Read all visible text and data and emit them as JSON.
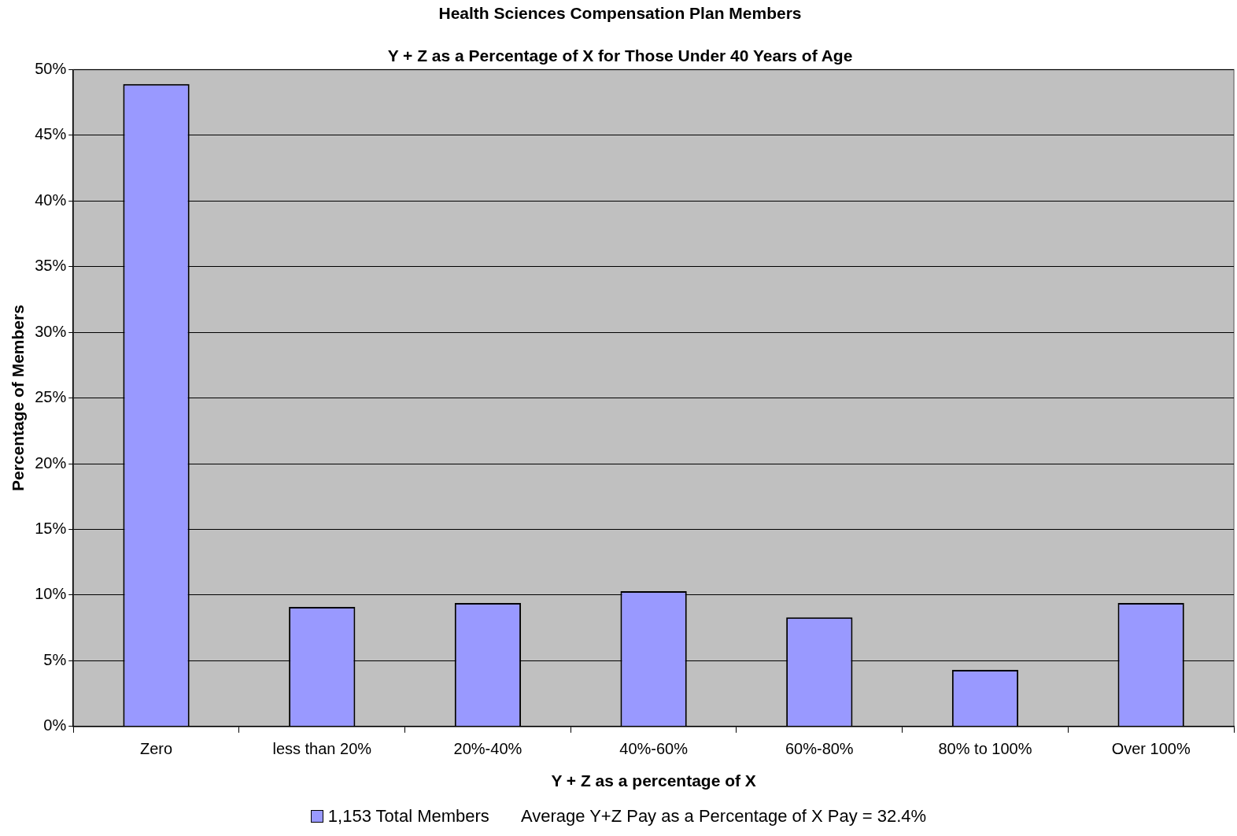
{
  "chart_data": {
    "type": "bar",
    "title": "Health Sciences Compensation Plan Members",
    "subtitle": "Y + Z as a Percentage of X for Those Under 40 Years of Age",
    "xlabel": "Y + Z as a percentage of X",
    "ylabel": "Percentage of Members",
    "categories": [
      "Zero",
      "less than 20%",
      "20%-40%",
      "40%-60%",
      "60%-80%",
      "80% to 100%",
      "Over 100%"
    ],
    "series": [
      {
        "name": "1,153 Total Members",
        "color": "#9999ff",
        "values": [
          48.9,
          9.1,
          9.4,
          10.3,
          8.3,
          4.3,
          9.4
        ]
      }
    ],
    "ylim": [
      0,
      50
    ],
    "yticks": [
      {
        "value": 0,
        "label": "0%"
      },
      {
        "value": 5,
        "label": "5%"
      },
      {
        "value": 10,
        "label": "10%"
      },
      {
        "value": 15,
        "label": "15%"
      },
      {
        "value": 20,
        "label": "20%"
      },
      {
        "value": 25,
        "label": "25%"
      },
      {
        "value": 30,
        "label": "30%"
      },
      {
        "value": 35,
        "label": "35%"
      },
      {
        "value": 40,
        "label": "40%"
      },
      {
        "value": 45,
        "label": "45%"
      },
      {
        "value": 50,
        "label": "50%"
      }
    ],
    "grid": "y",
    "legend": "bottom",
    "annotations": [
      "Average Y+Z Pay as a Percentage of X Pay = 32.4%"
    ]
  }
}
